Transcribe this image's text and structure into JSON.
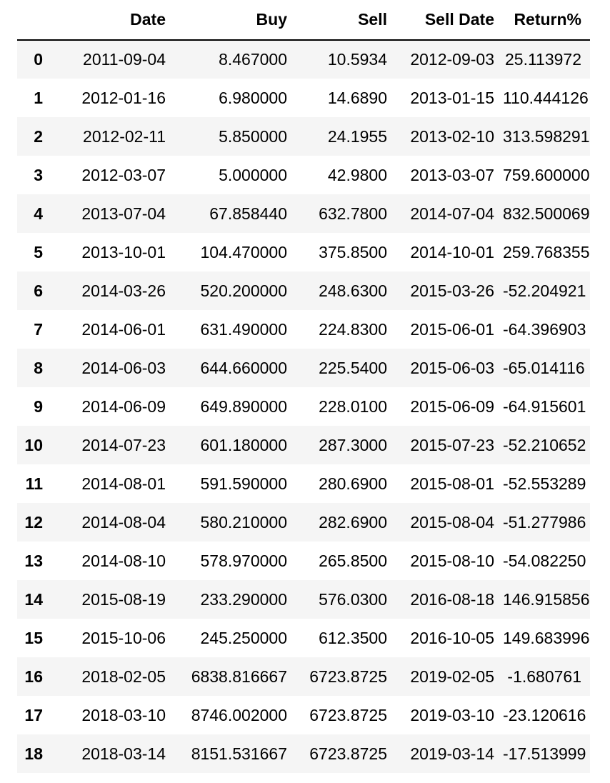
{
  "table": {
    "columns": [
      "",
      "Date",
      "Buy",
      "Sell",
      "Sell Date",
      "Return%"
    ],
    "rows": [
      {
        "index": "0",
        "date": "2011-09-04",
        "buy": "8.467000",
        "sell": "10.5934",
        "sell_date": "2012-09-03",
        "return": "25.113972"
      },
      {
        "index": "1",
        "date": "2012-01-16",
        "buy": "6.980000",
        "sell": "14.6890",
        "sell_date": "2013-01-15",
        "return": "110.444126"
      },
      {
        "index": "2",
        "date": "2012-02-11",
        "buy": "5.850000",
        "sell": "24.1955",
        "sell_date": "2013-02-10",
        "return": "313.598291"
      },
      {
        "index": "3",
        "date": "2012-03-07",
        "buy": "5.000000",
        "sell": "42.9800",
        "sell_date": "2013-03-07",
        "return": "759.600000"
      },
      {
        "index": "4",
        "date": "2013-07-04",
        "buy": "67.858440",
        "sell": "632.7800",
        "sell_date": "2014-07-04",
        "return": "832.500069"
      },
      {
        "index": "5",
        "date": "2013-10-01",
        "buy": "104.470000",
        "sell": "375.8500",
        "sell_date": "2014-10-01",
        "return": "259.768355"
      },
      {
        "index": "6",
        "date": "2014-03-26",
        "buy": "520.200000",
        "sell": "248.6300",
        "sell_date": "2015-03-26",
        "return": "-52.204921"
      },
      {
        "index": "7",
        "date": "2014-06-01",
        "buy": "631.490000",
        "sell": "224.8300",
        "sell_date": "2015-06-01",
        "return": "-64.396903"
      },
      {
        "index": "8",
        "date": "2014-06-03",
        "buy": "644.660000",
        "sell": "225.5400",
        "sell_date": "2015-06-03",
        "return": "-65.014116"
      },
      {
        "index": "9",
        "date": "2014-06-09",
        "buy": "649.890000",
        "sell": "228.0100",
        "sell_date": "2015-06-09",
        "return": "-64.915601"
      },
      {
        "index": "10",
        "date": "2014-07-23",
        "buy": "601.180000",
        "sell": "287.3000",
        "sell_date": "2015-07-23",
        "return": "-52.210652"
      },
      {
        "index": "11",
        "date": "2014-08-01",
        "buy": "591.590000",
        "sell": "280.6900",
        "sell_date": "2015-08-01",
        "return": "-52.553289"
      },
      {
        "index": "12",
        "date": "2014-08-04",
        "buy": "580.210000",
        "sell": "282.6900",
        "sell_date": "2015-08-04",
        "return": "-51.277986"
      },
      {
        "index": "13",
        "date": "2014-08-10",
        "buy": "578.970000",
        "sell": "265.8500",
        "sell_date": "2015-08-10",
        "return": "-54.082250"
      },
      {
        "index": "14",
        "date": "2015-08-19",
        "buy": "233.290000",
        "sell": "576.0300",
        "sell_date": "2016-08-18",
        "return": "146.915856"
      },
      {
        "index": "15",
        "date": "2015-10-06",
        "buy": "245.250000",
        "sell": "612.3500",
        "sell_date": "2016-10-05",
        "return": "149.683996"
      },
      {
        "index": "16",
        "date": "2018-02-05",
        "buy": "6838.816667",
        "sell": "6723.8725",
        "sell_date": "2019-02-05",
        "return": "-1.680761"
      },
      {
        "index": "17",
        "date": "2018-03-10",
        "buy": "8746.002000",
        "sell": "6723.8725",
        "sell_date": "2019-03-10",
        "return": "-23.120616"
      },
      {
        "index": "18",
        "date": "2018-03-14",
        "buy": "8151.531667",
        "sell": "6723.8725",
        "sell_date": "2019-03-14",
        "return": "-17.513999"
      }
    ]
  }
}
